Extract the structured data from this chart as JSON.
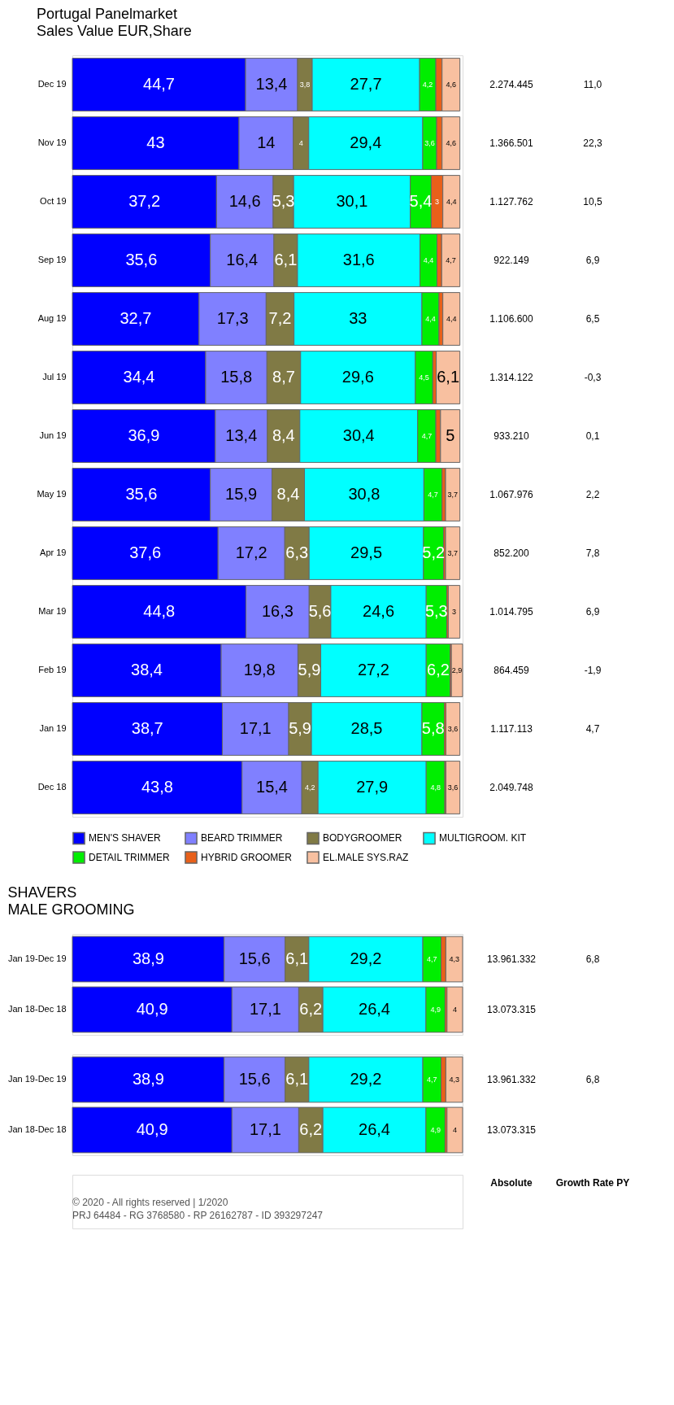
{
  "chart_data": [
    {
      "type": "bar",
      "orientation": "horizontal",
      "stacked": true,
      "title": "Portugal Panelmarket",
      "subtitle": "Sales Value EUR,Share",
      "legend": "bottom",
      "categories": [
        "Dec 19",
        "Nov 19",
        "Oct 19",
        "Sep 19",
        "Aug 19",
        "Jul 19",
        "Jun 19",
        "May 19",
        "Apr 19",
        "Mar 19",
        "Feb 19",
        "Jan 19",
        "Dec 18"
      ],
      "series": [
        {
          "name": "MEN'S SHAVER",
          "color": "#0000ff",
          "values": [
            44.7,
            43,
            37.2,
            35.6,
            32.7,
            34.4,
            36.9,
            35.6,
            37.6,
            44.8,
            38.4,
            38.7,
            43.8
          ],
          "value_labels": [
            "44,7",
            "43",
            "37,2",
            "35,6",
            "32,7",
            "34,4",
            "36,9",
            "35,6",
            "37,6",
            "44,8",
            "38,4",
            "38,7",
            "43,8"
          ]
        },
        {
          "name": "BEARD TRIMMER",
          "color": "#8080ff",
          "values": [
            13.4,
            14,
            14.6,
            16.4,
            17.3,
            15.8,
            13.4,
            15.9,
            17.2,
            16.3,
            19.8,
            17.1,
            15.4
          ],
          "value_labels": [
            "13,4",
            "14",
            "14,6",
            "16,4",
            "17,3",
            "15,8",
            "13,4",
            "15,9",
            "17,2",
            "16,3",
            "19,8",
            "17,1",
            "15,4"
          ]
        },
        {
          "name": "BODYGROOMER",
          "color": "#807a45",
          "values": [
            3.8,
            4,
            5.3,
            6.1,
            7.2,
            8.7,
            8.4,
            8.4,
            6.3,
            5.6,
            5.9,
            5.9,
            4.2
          ],
          "value_labels": [
            "3,8",
            "4",
            "5,3",
            "6,1",
            "7,2",
            "8,7",
            "8,4",
            "8,4",
            "6,3",
            "5,6",
            "5,9",
            "5,9",
            "4,2"
          ]
        },
        {
          "name": "MULTIGROOM. KIT",
          "color": "#00ffff",
          "values": [
            27.7,
            29.4,
            30.1,
            31.6,
            33,
            29.6,
            30.4,
            30.8,
            29.5,
            24.6,
            27.2,
            28.5,
            27.9
          ],
          "value_labels": [
            "27,7",
            "29,4",
            "30,1",
            "31,6",
            "33",
            "29,6",
            "30,4",
            "30,8",
            "29,5",
            "24,6",
            "27,2",
            "28,5",
            "27,9"
          ]
        },
        {
          "name": "DETAIL TRIMMER",
          "color": "#00ee00",
          "values": [
            4.2,
            3.6,
            5.4,
            4.4,
            4.4,
            4.5,
            4.7,
            4.7,
            5.2,
            5.3,
            6.2,
            5.8,
            4.8
          ],
          "value_labels": [
            "4,2",
            "3,6",
            "5,4",
            "4,4",
            "4,4",
            "4,5",
            "4,7",
            "4,7",
            "5,2",
            "5,3",
            "6,2",
            "5,8",
            "4,8"
          ]
        },
        {
          "name": "HYBRID GROOMER",
          "color": "#e8601a",
          "values": [
            1.6,
            1.4,
            3,
            1.2,
            1.0,
            0.9,
            1.2,
            0.9,
            0.5,
            0.4,
            0.3,
            0.4,
            0.3
          ],
          "value_labels": [
            null,
            null,
            "3",
            null,
            null,
            null,
            null,
            null,
            null,
            null,
            null,
            null,
            null
          ]
        },
        {
          "name": "EL.MALE SYS.RAZ",
          "color": "#f8c0a0",
          "values": [
            4.6,
            4.6,
            4.4,
            4.7,
            4.4,
            6.1,
            5,
            3.7,
            3.7,
            3,
            2.9,
            3.6,
            3.6
          ],
          "value_labels": [
            "4,6",
            "4,6",
            "4,4",
            "4,7",
            "4,4",
            "6,1",
            "5",
            "3,7",
            "3,7",
            "3",
            "2,9",
            "3,6",
            "3,6"
          ]
        }
      ],
      "annotations": [
        "2.274.445",
        "11,0",
        "1.366.501",
        "22,3",
        "1.127.762",
        "10,5",
        "922.149",
        "6,9",
        "1.106.600",
        "6,5",
        "1.314.122",
        "-0,3",
        "933.210",
        "0,1",
        "1.067.976",
        "2,2",
        "852.200",
        "7,8",
        "1.014.795",
        "6,9",
        "864.459",
        "-1,9",
        "1.117.113",
        "4,7",
        "2.049.748"
      ]
    },
    {
      "type": "bar",
      "orientation": "horizontal",
      "stacked": true,
      "title": "SHAVERS",
      "subtitle": "MALE GROOMING",
      "categories": [
        "Jan 19-Dec 19",
        "Jan 18-Dec 18"
      ],
      "series": [
        {
          "color": "#0000ff",
          "values": [
            38.9,
            40.9
          ],
          "value_labels": [
            "38,9",
            "40,9"
          ]
        },
        {
          "color": "#8080ff",
          "values": [
            15.6,
            17.1
          ],
          "value_labels": [
            "15,6",
            "17,1"
          ]
        },
        {
          "color": "#807a45",
          "values": [
            6.1,
            6.2
          ],
          "value_labels": [
            "6,1",
            "6,2"
          ]
        },
        {
          "color": "#00ffff",
          "values": [
            29.2,
            26.4
          ],
          "value_labels": [
            "29,2",
            "26,4"
          ]
        },
        {
          "color": "#00ee00",
          "values": [
            4.7,
            4.9
          ],
          "value_labels": [
            "4,7",
            "4,9"
          ]
        },
        {
          "color": "#e8601a",
          "values": [
            1.2,
            0.5
          ],
          "value_labels": [
            null,
            null
          ]
        },
        {
          "color": "#f8c0a0",
          "values": [
            4.3,
            4
          ],
          "value_labels": [
            "4,3",
            "4"
          ]
        }
      ],
      "annotations": [
        "13.961.332",
        "6,8",
        "13.073.315"
      ]
    },
    {
      "type": "bar",
      "orientation": "horizontal",
      "stacked": true,
      "categories": [
        "Jan 19-Dec 19",
        "Jan 18-Dec 18"
      ],
      "series": [
        {
          "color": "#0000ff",
          "values": [
            38.9,
            40.9
          ],
          "value_labels": [
            "38,9",
            "40,9"
          ]
        },
        {
          "color": "#8080ff",
          "values": [
            15.6,
            17.1
          ],
          "value_labels": [
            "15,6",
            "17,1"
          ]
        },
        {
          "color": "#807a45",
          "values": [
            6.1,
            6.2
          ],
          "value_labels": [
            "6,1",
            "6,2"
          ]
        },
        {
          "color": "#00ffff",
          "values": [
            29.2,
            26.4
          ],
          "value_labels": [
            "29,2",
            "26,4"
          ]
        },
        {
          "color": "#00ee00",
          "values": [
            4.7,
            4.9
          ],
          "value_labels": [
            "4,7",
            "4,9"
          ]
        },
        {
          "color": "#e8601a",
          "values": [
            1.2,
            0.5
          ],
          "value_labels": [
            null,
            null
          ]
        },
        {
          "color": "#f8c0a0",
          "values": [
            4.3,
            4
          ],
          "value_labels": [
            "4,3",
            "4"
          ]
        }
      ],
      "annotations": [
        "13.961.332",
        "6,8",
        "13.073.315"
      ]
    },
    {
      "type": "other",
      "annotations": [
        "Absolute",
        "Growth Rate PY",
        "© 2020 - All rights reserved | 1/2020",
        "PRJ 64484 - RG 3768580 - RP 26162787 - ID 393297247"
      ]
    }
  ]
}
